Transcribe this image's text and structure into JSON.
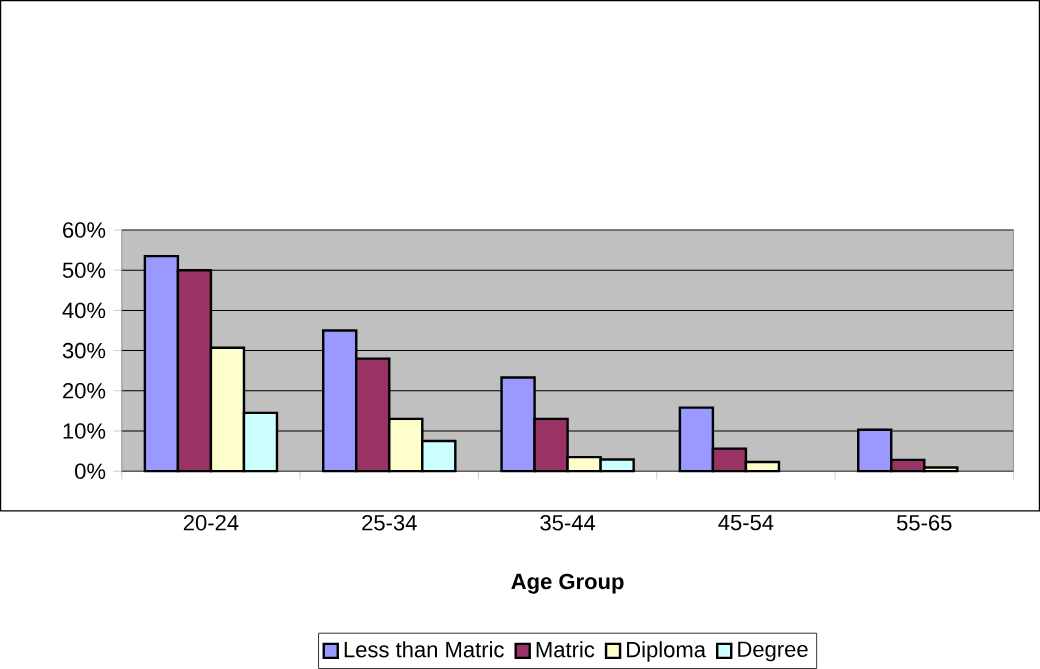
{
  "chart_data": {
    "type": "bar",
    "xlabel": "Age Group",
    "categories": [
      "20-24",
      "25-34",
      "35-44",
      "45-54",
      "55-65"
    ],
    "series": [
      {
        "name": "Less than Matric",
        "color": "#9999ff",
        "values": [
          53.5,
          35,
          23.3,
          15.8,
          10.3
        ]
      },
      {
        "name": "Matric",
        "color": "#993366",
        "values": [
          50,
          28,
          13,
          5.6,
          2.8
        ]
      },
      {
        "name": "Diploma",
        "color": "#ffffcc",
        "values": [
          30.7,
          13,
          3.5,
          2.3,
          0.9
        ]
      },
      {
        "name": "Degree",
        "color": "#ccffff",
        "values": [
          14.5,
          7.5,
          2.9,
          null,
          null
        ]
      }
    ],
    "ylim": [
      0,
      60
    ],
    "yticks": [
      {
        "value": 0,
        "label": "0%"
      },
      {
        "value": 10,
        "label": "10%"
      },
      {
        "value": 20,
        "label": "20%"
      },
      {
        "value": 30,
        "label": "30%"
      },
      {
        "value": 40,
        "label": "40%"
      },
      {
        "value": 50,
        "label": "50%"
      },
      {
        "value": 60,
        "label": "60%"
      }
    ],
    "grid": "y",
    "legend": "bottom"
  }
}
